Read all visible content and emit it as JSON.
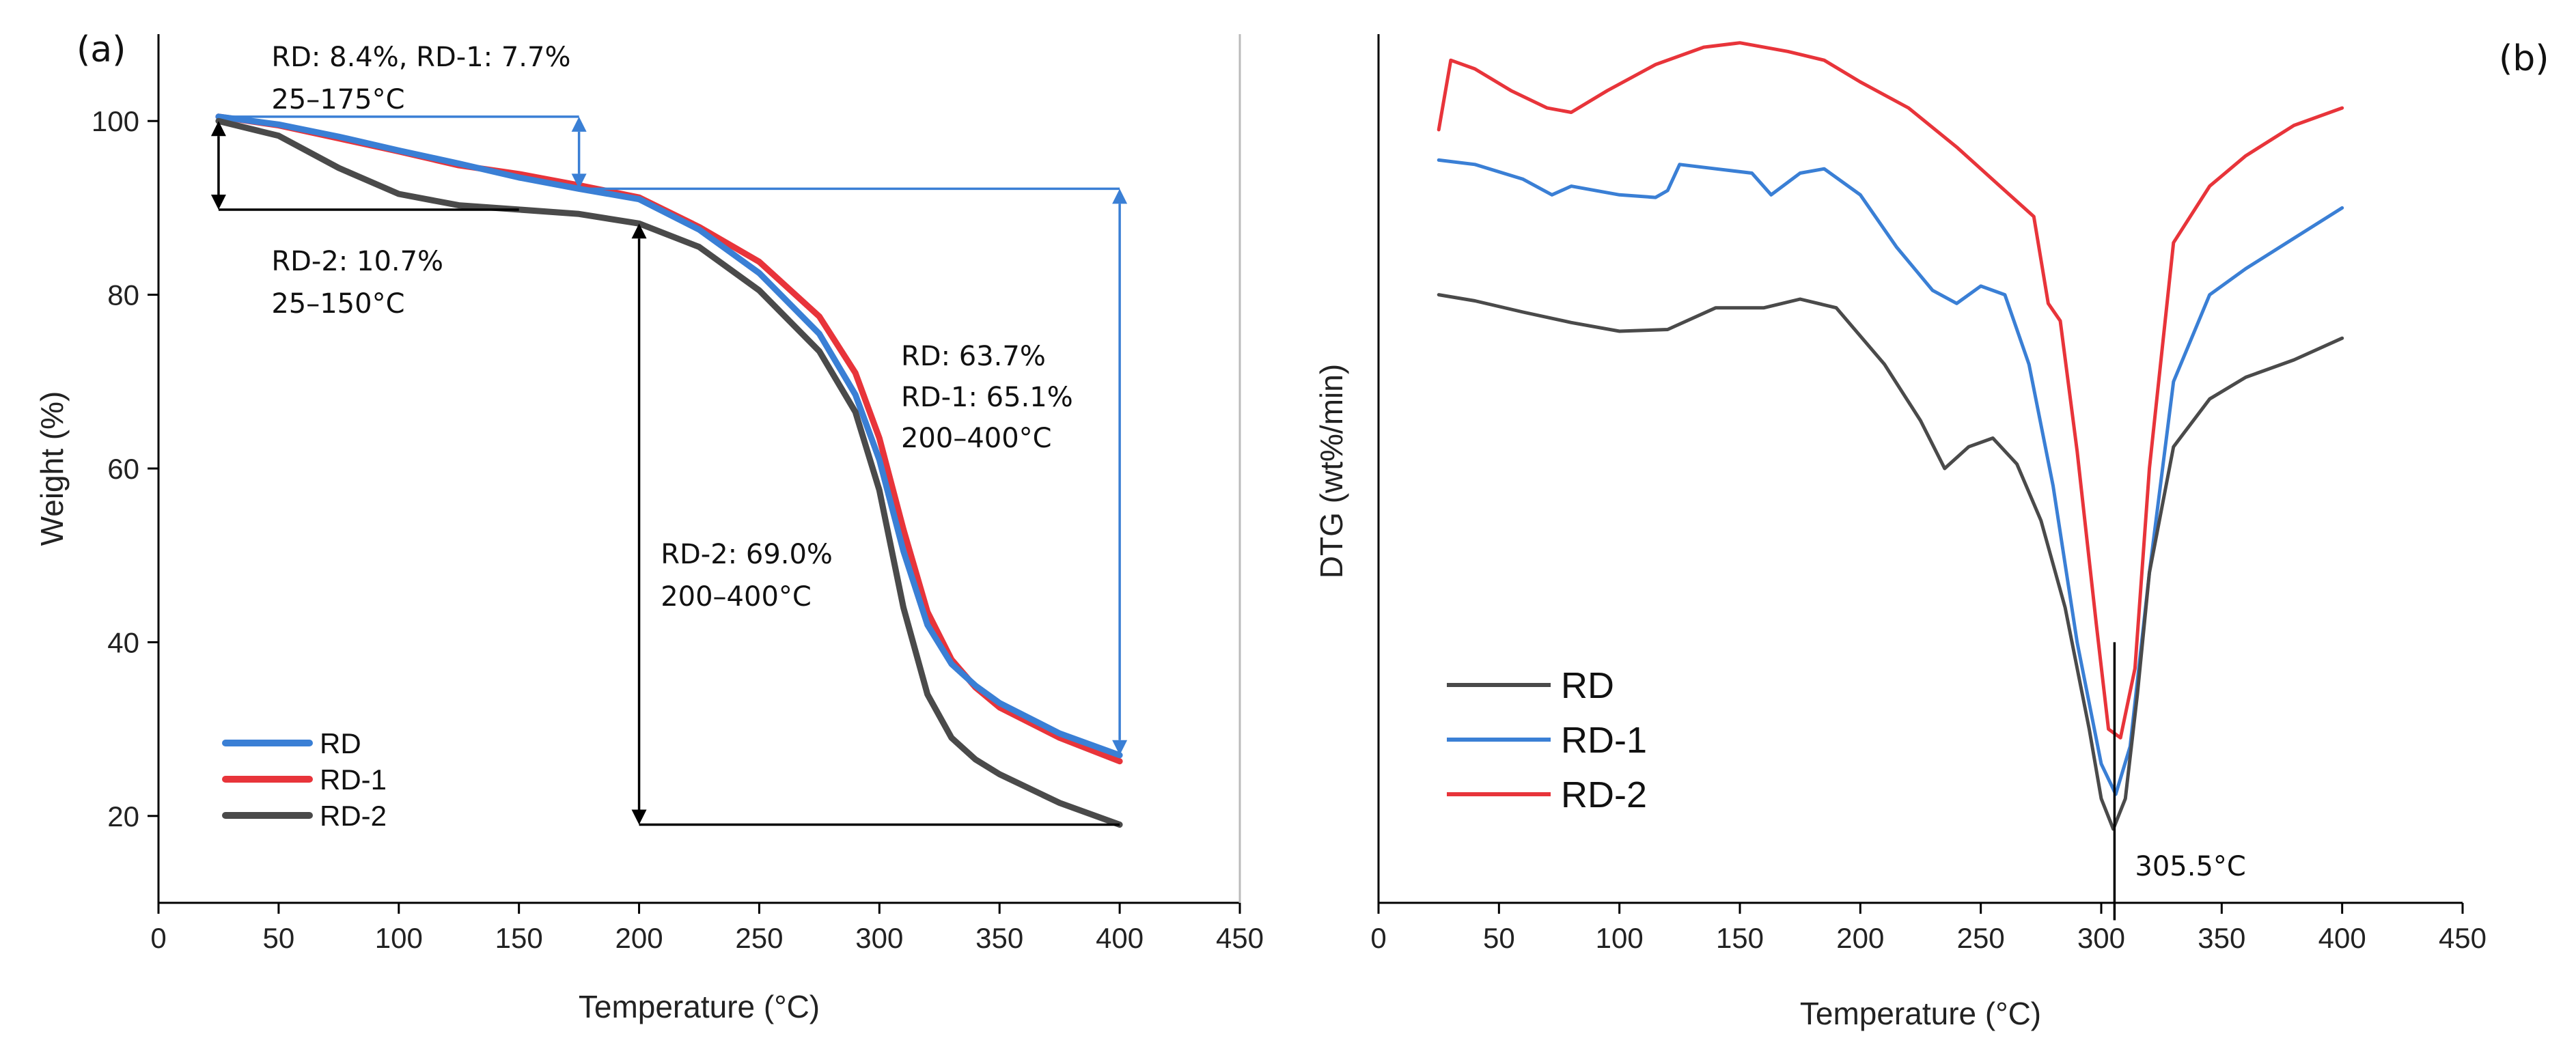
{
  "chart_data": [
    {
      "panel_label": "(a)",
      "type": "line",
      "xlabel": "Temperature (°C)",
      "ylabel": "Weight (%)",
      "xlim": [
        0,
        450
      ],
      "ylim": [
        10,
        110
      ],
      "xticks": [
        0,
        50,
        100,
        150,
        200,
        250,
        300,
        350,
        400,
        450
      ],
      "yticks": [
        20,
        40,
        60,
        80,
        100
      ],
      "legend": {
        "location": "bottom-left",
        "entries": [
          "RD",
          "RD-1",
          "RD-2"
        ]
      },
      "series": [
        {
          "name": "RD",
          "color": "#3a7fd5",
          "x": [
            25,
            50,
            75,
            100,
            125,
            150,
            175,
            200,
            225,
            250,
            275,
            290,
            300,
            310,
            320,
            330,
            340,
            350,
            375,
            400
          ],
          "y": [
            100.5,
            99.6,
            98.2,
            96.6,
            95.1,
            93.5,
            92.2,
            91.0,
            87.5,
            82.5,
            75.5,
            68.5,
            61.0,
            50.5,
            42.0,
            37.5,
            35.0,
            33.0,
            29.5,
            27.0
          ]
        },
        {
          "name": "RD-1",
          "color": "#e8343a",
          "x": [
            25,
            50,
            75,
            100,
            125,
            150,
            175,
            200,
            225,
            250,
            275,
            290,
            300,
            310,
            320,
            330,
            340,
            350,
            375,
            400
          ],
          "y": [
            100.5,
            99.5,
            98.0,
            96.5,
            94.9,
            93.9,
            92.6,
            91.2,
            87.8,
            83.8,
            77.5,
            71.0,
            63.5,
            53.0,
            43.5,
            38.0,
            34.8,
            32.5,
            29.0,
            26.3
          ]
        },
        {
          "name": "RD-2",
          "color": "#4a4a4a",
          "x": [
            25,
            50,
            75,
            100,
            125,
            150,
            175,
            200,
            225,
            250,
            275,
            290,
            300,
            310,
            320,
            330,
            340,
            350,
            375,
            400
          ],
          "y": [
            100.0,
            98.3,
            94.6,
            91.6,
            90.3,
            89.8,
            89.3,
            88.2,
            85.5,
            80.5,
            73.5,
            66.5,
            57.5,
            44.0,
            34.0,
            29.0,
            26.5,
            24.8,
            21.5,
            19.0
          ]
        }
      ],
      "annotations": [
        {
          "lines": [
            "RD: 8.4%, RD-1: 7.7%",
            "25–175°C"
          ]
        },
        {
          "lines": [
            "RD-2: 10.7%",
            "25–150°C"
          ]
        },
        {
          "lines": [
            "RD: 63.7%",
            "RD-1: 65.1%",
            "200–400°C"
          ]
        },
        {
          "lines": [
            "RD-2: 69.0%",
            "200–400°C"
          ]
        }
      ]
    },
    {
      "panel_label": "(b)",
      "type": "line",
      "xlabel": "Temperature (°C)",
      "ylabel": "DTG (wt%/min)",
      "xlim": [
        0,
        450
      ],
      "ylim": [
        0,
        100
      ],
      "xticks": [
        0,
        50,
        100,
        150,
        200,
        250,
        300,
        350,
        400,
        450
      ],
      "yticks": [],
      "legend": {
        "location": "bottom-left",
        "entries": [
          "RD",
          "RD-1",
          "RD-2"
        ]
      },
      "series": [
        {
          "name": "RD",
          "color": "#4a4a4a",
          "x": [
            25,
            40,
            60,
            80,
            100,
            120,
            140,
            160,
            175,
            190,
            210,
            225,
            235,
            245,
            255,
            265,
            275,
            285,
            295,
            300,
            305,
            310,
            315,
            320,
            330,
            345,
            360,
            380,
            400
          ],
          "y": [
            70.0,
            69.3,
            68.0,
            66.8,
            65.8,
            66.0,
            68.5,
            68.5,
            69.5,
            68.5,
            62.0,
            55.5,
            50.0,
            52.5,
            53.5,
            50.5,
            44.0,
            34.0,
            20.0,
            12.0,
            8.5,
            12.0,
            24.0,
            38.0,
            52.5,
            58.0,
            60.5,
            62.5,
            65.0
          ]
        },
        {
          "name": "RD-1",
          "color": "#3a7fd5",
          "x": [
            25,
            40,
            60,
            72,
            80,
            100,
            115,
            120,
            125,
            140,
            155,
            163,
            175,
            185,
            200,
            215,
            230,
            240,
            250,
            260,
            270,
            280,
            290,
            300,
            306,
            312,
            320,
            330,
            345,
            360,
            380,
            400
          ],
          "y": [
            85.5,
            85.0,
            83.3,
            81.5,
            82.5,
            81.5,
            81.2,
            82.0,
            85.0,
            84.5,
            84.0,
            81.5,
            84.0,
            84.5,
            81.5,
            75.5,
            70.5,
            69.0,
            71.0,
            70.0,
            62.0,
            48.0,
            30.0,
            16.0,
            12.5,
            18.0,
            38.0,
            60.0,
            70.0,
            73.0,
            76.5,
            80.0
          ]
        },
        {
          "name": "RD-2",
          "color": "#e8343a",
          "x": [
            25,
            30,
            40,
            55,
            70,
            80,
            95,
            115,
            135,
            150,
            170,
            185,
            200,
            220,
            240,
            260,
            272,
            278,
            283,
            290,
            298,
            303,
            308,
            314,
            320,
            330,
            345,
            360,
            380,
            400
          ],
          "y": [
            89.0,
            97.0,
            96.0,
            93.5,
            91.5,
            91.0,
            93.5,
            96.5,
            98.5,
            99.0,
            98.0,
            97.0,
            94.5,
            91.5,
            87.0,
            82.0,
            79.0,
            69.0,
            67.0,
            52.0,
            32.0,
            20.0,
            19.0,
            27.0,
            50.0,
            76.0,
            82.5,
            86.0,
            89.5,
            91.5
          ]
        }
      ],
      "annotations": [
        {
          "lines": [
            "305.5°C"
          ]
        }
      ]
    }
  ]
}
